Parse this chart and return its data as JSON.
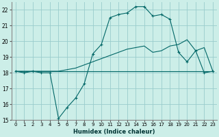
{
  "xlabel": "Humidex (Indice chaleur)",
  "background_color": "#cceee8",
  "grid_color": "#99cccc",
  "line_color": "#006666",
  "xlim": [
    -0.5,
    23.5
  ],
  "ylim": [
    15,
    22.5
  ],
  "yticks": [
    15,
    16,
    17,
    18,
    19,
    20,
    21,
    22
  ],
  "xticks": [
    0,
    1,
    2,
    3,
    4,
    5,
    6,
    7,
    8,
    9,
    10,
    11,
    12,
    13,
    14,
    15,
    16,
    17,
    18,
    19,
    20,
    21,
    22,
    23
  ],
  "line1_x": [
    0,
    1,
    2,
    3,
    4,
    5,
    6,
    7,
    8,
    9,
    10,
    11,
    12,
    13,
    14,
    15,
    16,
    17,
    18,
    19,
    20,
    21,
    22,
    23
  ],
  "line1_y": [
    18.1,
    18.0,
    18.1,
    18.0,
    18.0,
    15.1,
    15.8,
    16.4,
    17.3,
    19.2,
    19.8,
    21.5,
    21.7,
    21.8,
    22.2,
    22.2,
    21.6,
    21.7,
    21.4,
    19.3,
    18.7,
    19.4,
    18.0,
    18.1
  ],
  "line2_x": [
    0,
    23
  ],
  "line2_y": [
    18.1,
    18.1
  ],
  "line3_x": [
    0,
    1,
    2,
    3,
    4,
    5,
    6,
    7,
    8,
    9,
    10,
    11,
    12,
    13,
    14,
    15,
    16,
    17,
    18,
    19,
    20,
    21,
    22,
    23
  ],
  "line3_y": [
    18.1,
    18.1,
    18.1,
    18.1,
    18.1,
    18.1,
    18.2,
    18.3,
    18.5,
    18.7,
    18.9,
    19.1,
    19.3,
    19.5,
    19.6,
    19.7,
    19.3,
    19.4,
    19.7,
    19.8,
    20.1,
    19.4,
    19.6,
    18.1
  ]
}
